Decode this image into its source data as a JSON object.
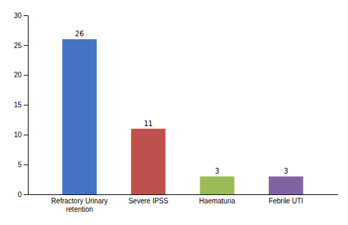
{
  "chart_data": {
    "type": "bar",
    "categories": [
      "Refractory Urinary\nretention",
      "Severe IPSS",
      "Haematuria",
      "Febrile UTI"
    ],
    "values": [
      26,
      11,
      3,
      3
    ],
    "colors": [
      "#4472C4",
      "#C0504D",
      "#9BBB59",
      "#8064A2"
    ],
    "ylim": [
      0,
      30
    ],
    "yticks": [
      0,
      5,
      10,
      15,
      20,
      25,
      30
    ],
    "grid": false,
    "data_labels": true
  }
}
